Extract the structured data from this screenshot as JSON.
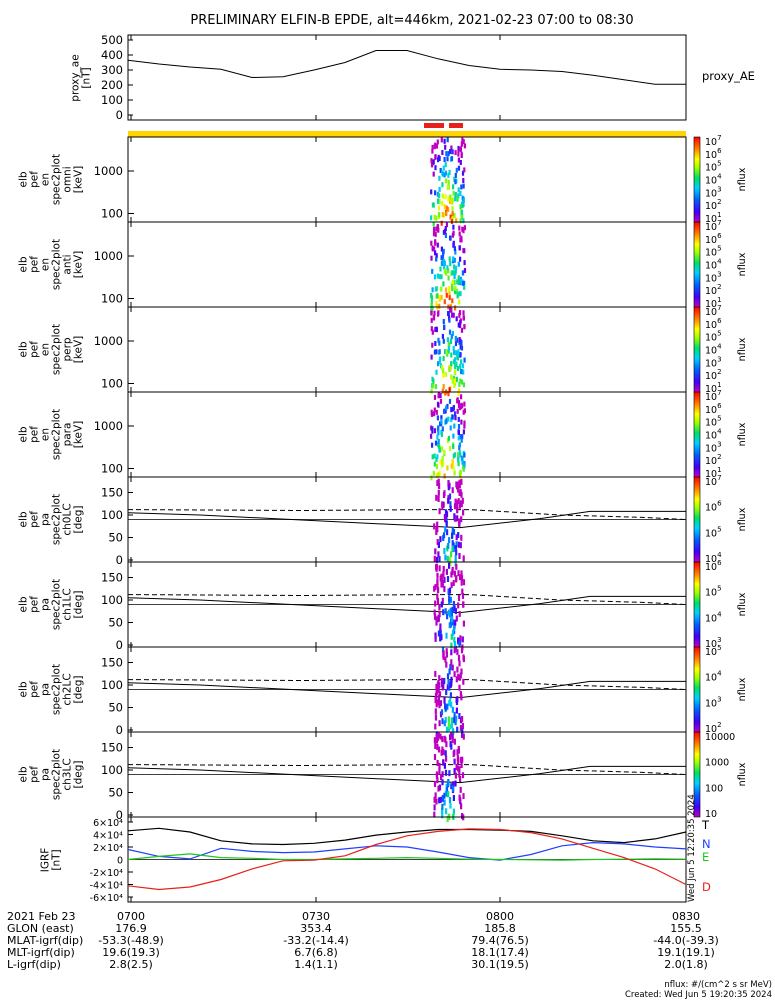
{
  "title": "PRELIMINARY ELFIN-B EPDE, alt=446km, 2021-02-23 07:00 to 08:30",
  "colors": {
    "orbit_bar": "#ffd400",
    "science_zone_bar": "#e8201c",
    "frame": "#000000"
  },
  "proxy_ae_panel": {
    "ylabel_lines": [
      "proxy_ae",
      "[nT]"
    ],
    "series_label": "proxy_AE",
    "ylim": [
      0,
      500
    ],
    "yticks": [
      "0",
      "100",
      "200",
      "300",
      "400",
      "500"
    ]
  },
  "energy_panels": [
    {
      "ylabel_lines": [
        "elb",
        "pef",
        "en",
        "spec2plot",
        "omni",
        "[keV]"
      ],
      "yticks": [
        "100",
        "1000"
      ],
      "cb_ticks": [
        "10",
        "10",
        "10",
        "10",
        "10",
        "10",
        "10"
      ],
      "cb_exps": [
        "1",
        "2",
        "3",
        "4",
        "5",
        "6",
        "7"
      ],
      "cb_label": "nflux"
    },
    {
      "ylabel_lines": [
        "elb",
        "pef",
        "en",
        "spec2plot",
        "anti",
        "[keV]"
      ],
      "yticks": [
        "100",
        "1000"
      ],
      "cb_ticks": [
        "10",
        "10",
        "10",
        "10",
        "10",
        "10",
        "10"
      ],
      "cb_exps": [
        "1",
        "2",
        "3",
        "4",
        "5",
        "6",
        "7"
      ],
      "cb_label": "nflux"
    },
    {
      "ylabel_lines": [
        "elb",
        "pef",
        "en",
        "spec2plot",
        "perp",
        "[keV]"
      ],
      "yticks": [
        "100",
        "1000"
      ],
      "cb_ticks": [
        "10",
        "10",
        "10",
        "10",
        "10",
        "10",
        "10"
      ],
      "cb_exps": [
        "1",
        "2",
        "3",
        "4",
        "5",
        "6",
        "7"
      ],
      "cb_label": "nflux"
    },
    {
      "ylabel_lines": [
        "elb",
        "pef",
        "en",
        "spec2plot",
        "para",
        "[keV]"
      ],
      "yticks": [
        "100",
        "1000"
      ],
      "cb_ticks": [
        "10",
        "10",
        "10",
        "10",
        "10",
        "10",
        "10"
      ],
      "cb_exps": [
        "1",
        "2",
        "3",
        "4",
        "5",
        "6",
        "7"
      ],
      "cb_label": "nflux"
    }
  ],
  "pa_panels": [
    {
      "ylabel_lines": [
        "elb",
        "pef",
        "pa",
        "spec2plot",
        "ch0LC",
        "[deg]"
      ],
      "yticks": [
        "0",
        "50",
        "100",
        "150"
      ],
      "cb_ticks": [
        "10",
        "10",
        "10",
        "10"
      ],
      "cb_exps": [
        "4",
        "5",
        "6",
        "7"
      ],
      "cb_label": "nflux"
    },
    {
      "ylabel_lines": [
        "elb",
        "pef",
        "pa",
        "spec2plot",
        "ch1LC",
        "[deg]"
      ],
      "yticks": [
        "0",
        "50",
        "100",
        "150"
      ],
      "cb_ticks": [
        "10",
        "10",
        "10",
        "10"
      ],
      "cb_exps": [
        "3",
        "4",
        "5",
        "6"
      ],
      "cb_label": "nflux"
    },
    {
      "ylabel_lines": [
        "elb",
        "pef",
        "pa",
        "spec2plot",
        "ch2LC",
        "[deg]"
      ],
      "yticks": [
        "0",
        "50",
        "100",
        "150"
      ],
      "cb_ticks": [
        "10",
        "10",
        "10",
        "10"
      ],
      "cb_exps": [
        "2",
        "3",
        "4",
        "5"
      ],
      "cb_label": "nflux"
    },
    {
      "ylabel_lines": [
        "elb",
        "pef",
        "pa",
        "spec2plot",
        "ch3LC",
        "[deg]"
      ],
      "yticks": [
        "0",
        "50",
        "100",
        "150"
      ],
      "cb_ticks": [
        "10",
        "100",
        "1000",
        "10000"
      ],
      "cb_exps": [
        "",
        "",
        "",
        ""
      ],
      "cb_label": "nflux"
    }
  ],
  "igrf_panel": {
    "ylabel_lines": [
      "IGRF",
      "[nT]"
    ],
    "yticks": [
      "-6×10⁴",
      "-4×10⁴",
      "-2×10⁴",
      "0",
      "2×10⁴",
      "4×10⁴",
      "6×10⁴"
    ],
    "ylim": [
      -60000,
      60000
    ],
    "legend": [
      {
        "name": "T",
        "color": "#000000"
      },
      {
        "name": "N",
        "color": "#1f3fff"
      },
      {
        "name": "E",
        "color": "#19c819"
      },
      {
        "name": "D",
        "color": "#e8201c"
      }
    ],
    "stamp": "Wed Jun 5 12:20:35 2024"
  },
  "footer": {
    "rows": [
      {
        "label": "2021 Feb 23",
        "values": [
          "0700",
          "0730",
          "0800",
          "0830"
        ]
      },
      {
        "label": "GLON (east)",
        "values": [
          "176.9",
          "353.4",
          "185.8",
          "155.5"
        ]
      },
      {
        "label": "MLAT-igrf(dip)",
        "values": [
          "-53.3(-48.9)",
          "-33.2(-14.4)",
          "79.4(76.5)",
          "-44.0(-39.3)"
        ]
      },
      {
        "label": "MLT-igrf(dip)",
        "values": [
          "19.6(19.3)",
          "6.7(6.8)",
          "18.1(17.4)",
          "19.1(19.1)"
        ]
      },
      {
        "label": "L-igrf(dip)",
        "values": [
          "2.8(2.5)",
          "1.4(1.1)",
          "30.1(19.5)",
          "2.0(1.8)"
        ]
      }
    ],
    "note_units": "nflux: #/(cm^2 s sr MeV)",
    "note_created": "Created: Wed Jun  5 19:20:35 2024"
  },
  "chart_data": [
    {
      "type": "line",
      "title": "PRELIMINARY ELFIN-B EPDE, alt=446km, 2021-02-23 07:00 to 08:30",
      "xlabel": "2021 Feb 23",
      "ylabel": "proxy_ae [nT]",
      "x": [
        "0700",
        "0705",
        "0710",
        "0715",
        "0720",
        "0725",
        "0730",
        "0735",
        "0740",
        "0745",
        "0750",
        "0755",
        "0800",
        "0805",
        "0810",
        "0815",
        "0820",
        "0825",
        "0830"
      ],
      "series": [
        {
          "name": "proxy_AE",
          "values": [
            365,
            340,
            320,
            305,
            250,
            255,
            300,
            350,
            430,
            430,
            375,
            330,
            305,
            300,
            290,
            265,
            235,
            205,
            205
          ]
        }
      ],
      "ylim": [
        0,
        500
      ]
    },
    {
      "type": "line",
      "xlabel": "2021 Feb 23",
      "ylabel": "IGRF [nT]",
      "x": [
        "0700",
        "0705",
        "0710",
        "0715",
        "0720",
        "0725",
        "0730",
        "0735",
        "0740",
        "0745",
        "0750",
        "0755",
        "0800",
        "0805",
        "0810",
        "0815",
        "0820",
        "0825",
        "0830"
      ],
      "series": [
        {
          "name": "T",
          "values": [
            46000,
            50000,
            44000,
            30000,
            25000,
            24000,
            26000,
            31000,
            39000,
            44000,
            48000,
            48000,
            47000,
            45000,
            38000,
            30000,
            27000,
            33000,
            44000
          ]
        },
        {
          "name": "N",
          "values": [
            16000,
            5000,
            1000,
            18000,
            13000,
            11000,
            12000,
            17000,
            22000,
            20000,
            12000,
            3000,
            -1000,
            8000,
            22000,
            27000,
            25000,
            20000,
            17000
          ]
        },
        {
          "name": "E",
          "values": [
            0,
            5000,
            9000,
            3000,
            2000,
            0,
            0,
            1000,
            2000,
            3000,
            2000,
            500,
            0,
            -500,
            -1000,
            0,
            500,
            1000,
            500
          ]
        },
        {
          "name": "D",
          "values": [
            -42000,
            -48000,
            -44000,
            -32000,
            -15000,
            -2000,
            -1000,
            6000,
            24000,
            38000,
            45000,
            49000,
            48000,
            43000,
            33000,
            18000,
            3000,
            -15000,
            -40000
          ]
        }
      ],
      "ylim": [
        -60000,
        60000
      ]
    }
  ]
}
